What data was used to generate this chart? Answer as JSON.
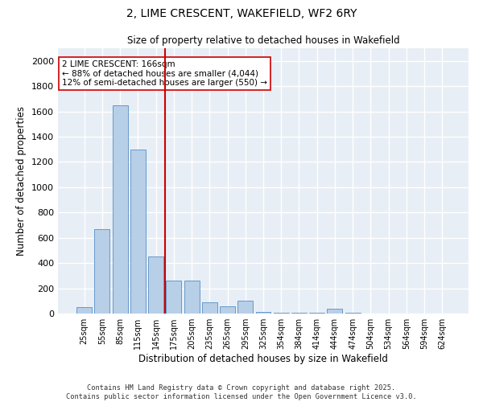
{
  "title_line1": "2, LIME CRESCENT, WAKEFIELD, WF2 6RY",
  "title_line2": "Size of property relative to detached houses in Wakefield",
  "xlabel": "Distribution of detached houses by size in Wakefield",
  "ylabel": "Number of detached properties",
  "categories": [
    "25sqm",
    "55sqm",
    "85sqm",
    "115sqm",
    "145sqm",
    "175sqm",
    "205sqm",
    "235sqm",
    "265sqm",
    "295sqm",
    "325sqm",
    "354sqm",
    "384sqm",
    "414sqm",
    "444sqm",
    "474sqm",
    "504sqm",
    "534sqm",
    "564sqm",
    "594sqm",
    "624sqm"
  ],
  "values": [
    50,
    670,
    1650,
    1300,
    450,
    260,
    260,
    90,
    55,
    100,
    10,
    5,
    5,
    5,
    40,
    5,
    3,
    2,
    2,
    2,
    2
  ],
  "bar_color": "#b8cfe8",
  "bar_edge_color": "#6699cc",
  "vline_x_index": 5,
  "vline_color": "#cc0000",
  "annotation_text": "2 LIME CRESCENT: 166sqm\n← 88% of detached houses are smaller (4,044)\n12% of semi-detached houses are larger (550) →",
  "annotation_box_color": "#ffffff",
  "annotation_box_edge_color": "#cc0000",
  "ylim": [
    0,
    2100
  ],
  "yticks": [
    0,
    200,
    400,
    600,
    800,
    1000,
    1200,
    1400,
    1600,
    1800,
    2000
  ],
  "background_color": "#e8eef5",
  "grid_color": "#ffffff",
  "fig_bg": "#ffffff",
  "footer_line1": "Contains HM Land Registry data © Crown copyright and database right 2025.",
  "footer_line2": "Contains public sector information licensed under the Open Government Licence v3.0."
}
